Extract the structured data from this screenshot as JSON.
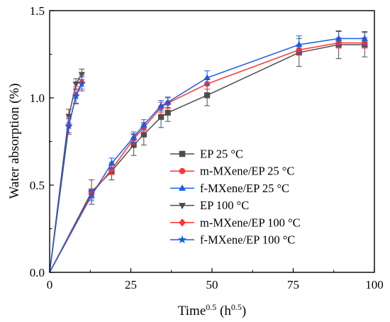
{
  "chart_data": {
    "type": "line",
    "xlabel": {
      "main": "Time",
      "main_sup": "0.5",
      "unit_open": " (h",
      "unit_sup": "0.5",
      "unit_close": ")"
    },
    "ylabel": "Water absorption (%)",
    "xlim": [
      0,
      100
    ],
    "ylim": [
      0,
      1.5
    ],
    "xticks": [
      0,
      25,
      50,
      75,
      100
    ],
    "yticks": [
      0.0,
      0.5,
      1.0,
      1.5
    ],
    "ytick_labels": [
      "0.0",
      "0.5",
      "1.0",
      "1.5"
    ],
    "legend_position": "center-right",
    "series": [
      {
        "name": "EP 25 °C",
        "color": "#4d4d4d",
        "marker": "square",
        "x": [
          0,
          12.9,
          19.1,
          25.9,
          29.0,
          34.3,
          36.4,
          48.5,
          76.8,
          89.0,
          97.0
        ],
        "y": [
          0,
          0.46,
          0.58,
          0.73,
          0.79,
          0.89,
          0.915,
          1.015,
          1.26,
          1.305,
          1.305
        ],
        "err": [
          0,
          0.07,
          0.05,
          0.06,
          0.06,
          0.06,
          0.05,
          0.06,
          0.08,
          0.08,
          0.07
        ]
      },
      {
        "name": "m-MXene/EP 25 °C",
        "color": "#ff3333",
        "marker": "circle",
        "x": [
          0,
          12.9,
          19.1,
          25.9,
          29.0,
          34.3,
          36.4,
          48.5,
          76.8,
          89.0,
          97.0
        ],
        "y": [
          0,
          0.45,
          0.59,
          0.765,
          0.83,
          0.945,
          0.97,
          1.08,
          1.275,
          1.315,
          1.315
        ],
        "err": [
          0,
          0.03,
          0.03,
          0.03,
          0.03,
          0.03,
          0.03,
          0.03,
          0.03,
          0.03,
          0.03
        ]
      },
      {
        "name": "f-MXene/EP 25 °C",
        "color": "#1a5ce6",
        "marker": "triangle-up",
        "x": [
          0,
          12.9,
          19.1,
          25.9,
          29.0,
          34.3,
          36.4,
          48.5,
          76.8,
          89.0,
          97.0
        ],
        "y": [
          0,
          0.44,
          0.625,
          0.775,
          0.845,
          0.955,
          0.975,
          1.115,
          1.305,
          1.34,
          1.34
        ],
        "err": [
          0,
          0.03,
          0.03,
          0.03,
          0.03,
          0.03,
          0.03,
          0.04,
          0.05,
          0.04,
          0.04
        ]
      },
      {
        "name": "EP 100 °C",
        "color": "#4d4d4d",
        "marker": "triangle-down",
        "x": [
          0,
          5.9,
          8.1,
          9.9
        ],
        "y": [
          0,
          0.895,
          1.08,
          1.135
        ],
        "err": [
          0,
          0.04,
          0.03,
          0.03
        ]
      },
      {
        "name": "m-MXene/EP 100 °C",
        "color": "#ff3333",
        "marker": "diamond",
        "x": [
          0,
          5.9,
          8.1,
          9.9
        ],
        "y": [
          0,
          0.84,
          1.015,
          1.09
        ],
        "err": [
          0,
          0.05,
          0.05,
          0.04
        ]
      },
      {
        "name": "f-MXene/EP 100 °C",
        "color": "#1a5ce6",
        "marker": "star",
        "x": [
          0,
          5.9,
          8.1,
          9.9
        ],
        "y": [
          0,
          0.84,
          1.01,
          1.08
        ],
        "err": [
          0,
          0.04,
          0.04,
          0.04
        ]
      }
    ]
  }
}
